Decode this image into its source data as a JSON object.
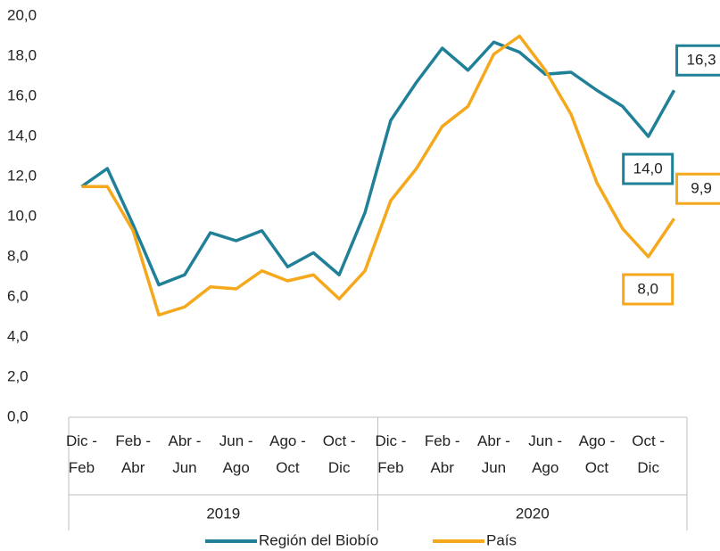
{
  "chart_data": {
    "type": "line",
    "categories": [
      "Dic - Feb",
      null,
      "Feb - Abr",
      null,
      "Abr - Jun",
      null,
      "Jun - Ago",
      null,
      "Ago - Oct",
      null,
      "Oct - Dic",
      null,
      "Dic - Feb",
      null,
      "Feb - Abr",
      null,
      "Abr - Jun",
      null,
      "Jun - Ago",
      null,
      "Ago - Oct",
      null,
      "Oct - Dic",
      null
    ],
    "groups": [
      "2019",
      "2020"
    ],
    "series": [
      {
        "name": "Región del Biobío",
        "color": "#1f8098",
        "values": [
          11.5,
          12.4,
          9.6,
          6.6,
          7.1,
          9.2,
          8.8,
          9.3,
          7.5,
          8.2,
          7.1,
          10.2,
          14.8,
          16.7,
          18.4,
          17.3,
          18.7,
          18.2,
          17.1,
          17.2,
          16.3,
          15.5,
          14.0,
          16.3
        ],
        "value_labels": [
          null,
          null,
          null,
          null,
          null,
          null,
          null,
          null,
          null,
          null,
          null,
          null,
          null,
          null,
          null,
          null,
          null,
          null,
          null,
          null,
          null,
          null,
          "14,0",
          "16,3"
        ]
      },
      {
        "name": "País",
        "color": "#f5a81c",
        "values": [
          11.5,
          11.5,
          9.3,
          5.1,
          5.5,
          6.5,
          6.4,
          7.3,
          6.8,
          7.1,
          5.9,
          7.3,
          10.8,
          12.4,
          14.5,
          15.5,
          18.1,
          19.0,
          17.3,
          15.1,
          11.7,
          9.4,
          8.0,
          9.9
        ],
        "value_labels": [
          null,
          null,
          null,
          null,
          null,
          null,
          null,
          null,
          null,
          null,
          null,
          null,
          null,
          null,
          null,
          null,
          null,
          null,
          null,
          null,
          null,
          null,
          "8,0",
          "9,9"
        ]
      }
    ],
    "ylim": [
      0,
      20
    ],
    "yticks": [
      {
        "value": 0,
        "label": "0,0"
      },
      {
        "value": 2,
        "label": "2,0"
      },
      {
        "value": 4,
        "label": "4,0"
      },
      {
        "value": 6,
        "label": "6,0"
      },
      {
        "value": 8,
        "label": "8,0"
      },
      {
        "value": 10,
        "label": "10,0"
      },
      {
        "value": 12,
        "label": "12,0"
      },
      {
        "value": 14,
        "label": "14,0"
      },
      {
        "value": 16,
        "label": "16,0"
      },
      {
        "value": 18,
        "label": "18,0"
      },
      {
        "value": 20,
        "label": "20,0"
      }
    ],
    "legend": "bottom"
  }
}
